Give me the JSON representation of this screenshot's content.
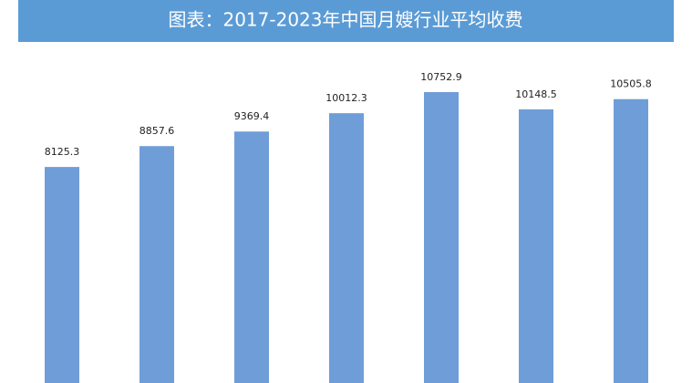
{
  "chart_data": {
    "type": "bar",
    "title": "图表：2017-2023年中国月嫂行业平均收费",
    "values": [
      8125.3,
      8857.6,
      9369.4,
      10012.3,
      10752.9,
      10148.5,
      10505.8
    ],
    "color": "#6f9dd8"
  }
}
